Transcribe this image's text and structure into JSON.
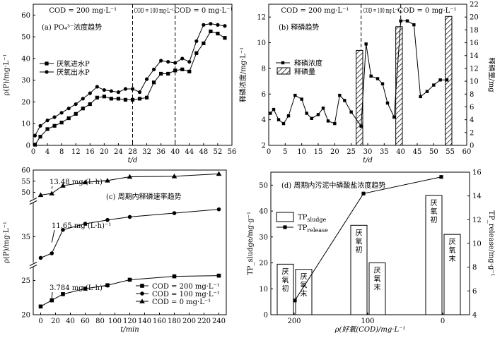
{
  "chart_data": [
    {
      "type": "line",
      "panel": "a",
      "title": "(a) PO₄³⁻浓度趋势",
      "xlabel": "t/d",
      "ylabel": "ρ(P)/mg·L⁻¹",
      "xlim": [
        0,
        56
      ],
      "ylim": [
        0,
        65
      ],
      "xticks": [
        0,
        4,
        8,
        12,
        16,
        20,
        24,
        28,
        32,
        36,
        40,
        44,
        48,
        52,
        56
      ],
      "yticks": [
        0,
        10,
        20,
        30,
        40,
        50,
        60
      ],
      "phases": [
        "COD = 200 mg·L⁻¹",
        "COD = 100 mg·L⁻¹",
        "COD = 0 mg·L⁻¹"
      ],
      "phase_boundaries": [
        28,
        40
      ],
      "legend": "center-left",
      "series": [
        {
          "name": "厌氧进水P",
          "marker": "square",
          "x": [
            0.5,
            2,
            4,
            6,
            8,
            10,
            12,
            14,
            16,
            18,
            20,
            22,
            24,
            26,
            28,
            30,
            32,
            34,
            36,
            38,
            40,
            42,
            44,
            46,
            48,
            50,
            52,
            54
          ],
          "y": [
            0.3,
            4,
            7.5,
            9,
            10.5,
            12.5,
            14.5,
            17,
            19,
            22,
            22.5,
            21.5,
            21.5,
            21,
            21,
            21.5,
            22,
            29,
            33,
            33,
            34.5,
            35,
            34,
            42.5,
            47,
            52.5,
            51.5,
            49.5
          ]
        },
        {
          "name": "厌氧出水P",
          "marker": "circle",
          "x": [
            0.5,
            2,
            4,
            6,
            8,
            10,
            12,
            14,
            16,
            18,
            20,
            22,
            24,
            26,
            28,
            30,
            32,
            34,
            36,
            38,
            40,
            42,
            44,
            46,
            48,
            50,
            52,
            54
          ],
          "y": [
            4.5,
            9,
            11.5,
            13,
            15,
            17,
            19,
            21.5,
            24,
            27,
            25.5,
            25,
            24.5,
            26,
            26,
            24.5,
            30.5,
            35,
            39,
            38.5,
            38,
            40,
            38.5,
            48,
            55.5,
            56,
            55.5,
            55
          ]
        }
      ]
    },
    {
      "type": "bar+line",
      "panel": "b",
      "title": "(b) 释磷趋势",
      "xlabel": "t/d",
      "ylabel": "释磷浓度/mg·L⁻¹",
      "ylabel_right": "释磷量/mg",
      "xlim": [
        0,
        60
      ],
      "ylim": [
        2,
        13
      ],
      "ylim_right": [
        0,
        22
      ],
      "xticks": [
        0,
        5,
        10,
        15,
        20,
        25,
        30,
        35,
        40,
        45,
        50,
        55,
        60
      ],
      "yticks": [
        2,
        4,
        6,
        8,
        10,
        12
      ],
      "yticks_right": [
        0,
        2,
        4,
        6,
        8,
        10,
        12,
        14,
        16,
        18,
        20,
        22
      ],
      "phases": [
        "COD = 200 mg·L⁻¹",
        "COD = 100 mg·L⁻¹",
        "COD = 0 mg·L⁻¹"
      ],
      "phase_boundaries": [
        28,
        40
      ],
      "legend": "top-left",
      "series": [
        {
          "name": "释磷浓度",
          "marker": "square",
          "x": [
            0.5,
            1.5,
            3,
            4.5,
            6,
            8,
            10,
            11.5,
            13,
            15,
            16.5,
            18,
            20,
            21.5,
            23,
            25,
            28,
            29.5,
            31,
            33,
            34.5,
            36,
            38,
            40,
            42,
            44,
            46,
            48,
            50,
            52,
            54
          ],
          "y": [
            4.5,
            4.8,
            4,
            3.7,
            4.3,
            5.9,
            5.6,
            4.5,
            4.1,
            4.4,
            4.9,
            3.9,
            3.7,
            5.9,
            5.5,
            4.6,
            3.5,
            9.9,
            7.4,
            7.2,
            6.8,
            5.3,
            4.2,
            11.7,
            11.7,
            11.4,
            5.8,
            6.2,
            6.7,
            7.1,
            7.1
          ]
        }
      ],
      "bars": {
        "name": "释磷量",
        "x": [
          27.5,
          39.5,
          54.5
        ],
        "values": [
          14.8,
          18.5,
          20.1
        ]
      }
    },
    {
      "type": "line",
      "panel": "c",
      "title": "(c) 周期内释磷速率趋势",
      "xlabel": "t/min",
      "ylabel": "ρ(P)/mg·L⁻¹",
      "xlim": [
        -10,
        250
      ],
      "xticks": [
        0,
        20,
        40,
        60,
        80,
        100,
        120,
        140,
        160,
        180,
        200,
        220,
        240
      ],
      "broken_axis": true,
      "legend": "bottom-right",
      "segments": [
        {
          "ylim": [
            20,
            27
          ],
          "yticks": [
            20,
            25
          ]
        },
        {
          "ylim": [
            31.5,
            39.5
          ],
          "yticks": [
            35
          ]
        },
        {
          "ylim": [
            47,
            60
          ],
          "yticks": [
            50,
            55,
            60
          ]
        }
      ],
      "series": [
        {
          "name": "COD = 200 mg·L⁻¹",
          "marker": "square",
          "rate_label": "3.784 mg·(L·h)⁻¹",
          "x": [
            0,
            15,
            30,
            60,
            90,
            120,
            180,
            240
          ],
          "y": [
            21.2,
            22.1,
            23,
            23.8,
            24.3,
            25.1,
            25.6,
            25.7
          ]
        },
        {
          "name": "COD = 100 mg·L⁻¹",
          "marker": "circle",
          "rate_label": "11.65 mg·(L·h)⁻¹",
          "x": [
            0,
            15,
            30,
            60,
            90,
            120,
            180,
            240
          ],
          "y": [
            32.2,
            32.8,
            35.9,
            36.7,
            37.2,
            37.6,
            38.1,
            38.6
          ]
        },
        {
          "name": "COD = 0 mg·L⁻¹",
          "marker": "triangle",
          "rate_label": "13.48 mg·(L·h)⁻¹",
          "x": [
            0,
            15,
            30,
            60,
            90,
            120,
            180,
            240
          ],
          "y": [
            48.8,
            49.5,
            53,
            54.5,
            55.3,
            57,
            57.2,
            58.3
          ]
        }
      ]
    },
    {
      "type": "bar+line",
      "panel": "d",
      "title": "(d) 周期内污泥中磷酸盐浓度趋势",
      "xlabel": "ρ(好氧(COD)/mg·L⁻¹",
      "ylabel": "TP_sludge/mg·g⁻¹",
      "ylabel_right": "TP_release/mg·g⁻¹",
      "ylim": [
        0,
        55
      ],
      "ylim_right": [
        4,
        16
      ],
      "yticks": [
        0,
        10,
        20,
        30,
        40,
        50
      ],
      "yticks_right": [
        4,
        6,
        8,
        10,
        12,
        14,
        16
      ],
      "categories": [
        "200",
        "100",
        "0"
      ],
      "legend": "center-left",
      "legend_sub": {
        "sludge": "sludge",
        "release": "release"
      },
      "bar_labels": [
        "厌氧初",
        "厌氧末"
      ],
      "bars": {
        "name": "TP_sludge",
        "values": [
          [
            19.5,
            17.5
          ],
          [
            34.5,
            20
          ],
          [
            46,
            31
          ]
        ]
      },
      "line": {
        "name": "TP_release",
        "values": [
          5.2,
          14.2,
          15.6
        ]
      }
    }
  ]
}
